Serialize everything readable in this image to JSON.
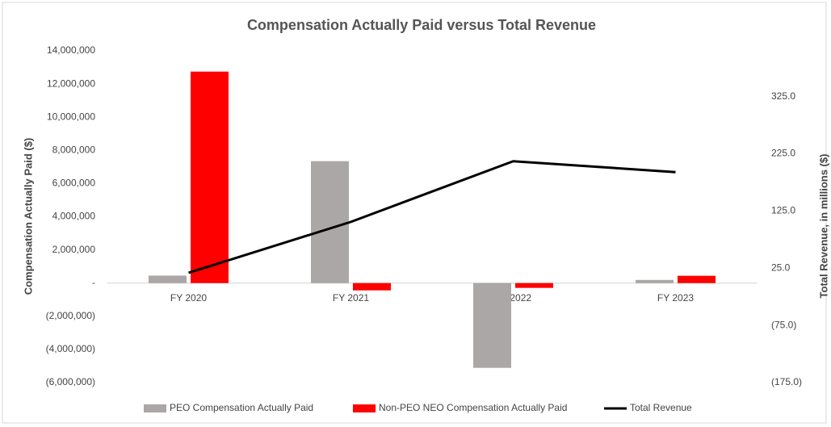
{
  "chart_data": {
    "type": "bar",
    "title": "Compensation Actually Paid versus Total Revenue",
    "y_label": "Compensation Actually Paid ($)",
    "y2_label": "Total Revenue, in millions ($)",
    "categories": [
      "FY 2020",
      "FY 2021",
      "FY 2022",
      "FY 2023"
    ],
    "series": [
      {
        "name": "PEO Compensation Actually Paid",
        "color": "#aba7a6",
        "type": "bar",
        "values": [
          450000,
          7350000,
          -5110000,
          190000
        ]
      },
      {
        "name": "Non-PEO NEO Compensation Actually Paid",
        "color": "#ff0000",
        "type": "bar",
        "values": [
          12750000,
          -440000,
          -290000,
          440000
        ]
      },
      {
        "name": "Total Revenue",
        "color": "#000000",
        "type": "line",
        "axis": "y2",
        "values": [
          17,
          106,
          212,
          193
        ]
      }
    ],
    "ylim": [
      -6000000,
      14000000
    ],
    "yticks": [
      {
        "value": -6000000,
        "label": "(6,000,000)"
      },
      {
        "value": -4000000,
        "label": "(4,000,000)"
      },
      {
        "value": -2000000,
        "label": "(2,000,000)"
      },
      {
        "value": 0,
        "label": "-"
      },
      {
        "value": 2000000,
        "label": "2,000,000"
      },
      {
        "value": 4000000,
        "label": "4,000,000"
      },
      {
        "value": 6000000,
        "label": "6,000,000"
      },
      {
        "value": 8000000,
        "label": "8,000,000"
      },
      {
        "value": 10000000,
        "label": "10,000,000"
      },
      {
        "value": 12000000,
        "label": "12,000,000"
      },
      {
        "value": 14000000,
        "label": "14,000,000"
      }
    ],
    "y2lim": [
      -175,
      405
    ],
    "y2ticks": [
      {
        "value": -175,
        "label": "(175.0)"
      },
      {
        "value": -75,
        "label": "(75.0)"
      },
      {
        "value": 25,
        "label": "25.0"
      },
      {
        "value": 125,
        "label": "125.0"
      },
      {
        "value": 225,
        "label": "225.0"
      },
      {
        "value": 325,
        "label": "325.0"
      }
    ],
    "legend": "bottom"
  }
}
